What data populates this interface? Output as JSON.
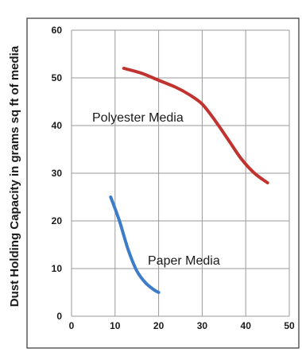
{
  "chart_data": {
    "type": "line",
    "ylabel": "Dust Holding Capacity in grams sq ft of media",
    "xlim": [
      0,
      50
    ],
    "ylim": [
      0,
      60
    ],
    "x_ticks": [
      "0",
      "10",
      "20",
      "30",
      "40",
      "50"
    ],
    "y_ticks": [
      "0",
      "10",
      "20",
      "30",
      "40",
      "50",
      "60"
    ],
    "grid": true,
    "legend": "none",
    "series": [
      {
        "name": "Polyester Media",
        "color": "#c0332e",
        "x": [
          12,
          16,
          20,
          24,
          27,
          30,
          33,
          36,
          39,
          42,
          45
        ],
        "y": [
          52,
          51,
          49.5,
          48,
          46.5,
          44.5,
          41,
          37,
          33,
          30,
          28
        ]
      },
      {
        "name": "Paper Media",
        "color": "#3d7cc9",
        "x": [
          9,
          11,
          13,
          15,
          17,
          19,
          20
        ],
        "y": [
          25,
          20,
          14,
          9.5,
          7,
          5.5,
          5
        ]
      }
    ]
  }
}
